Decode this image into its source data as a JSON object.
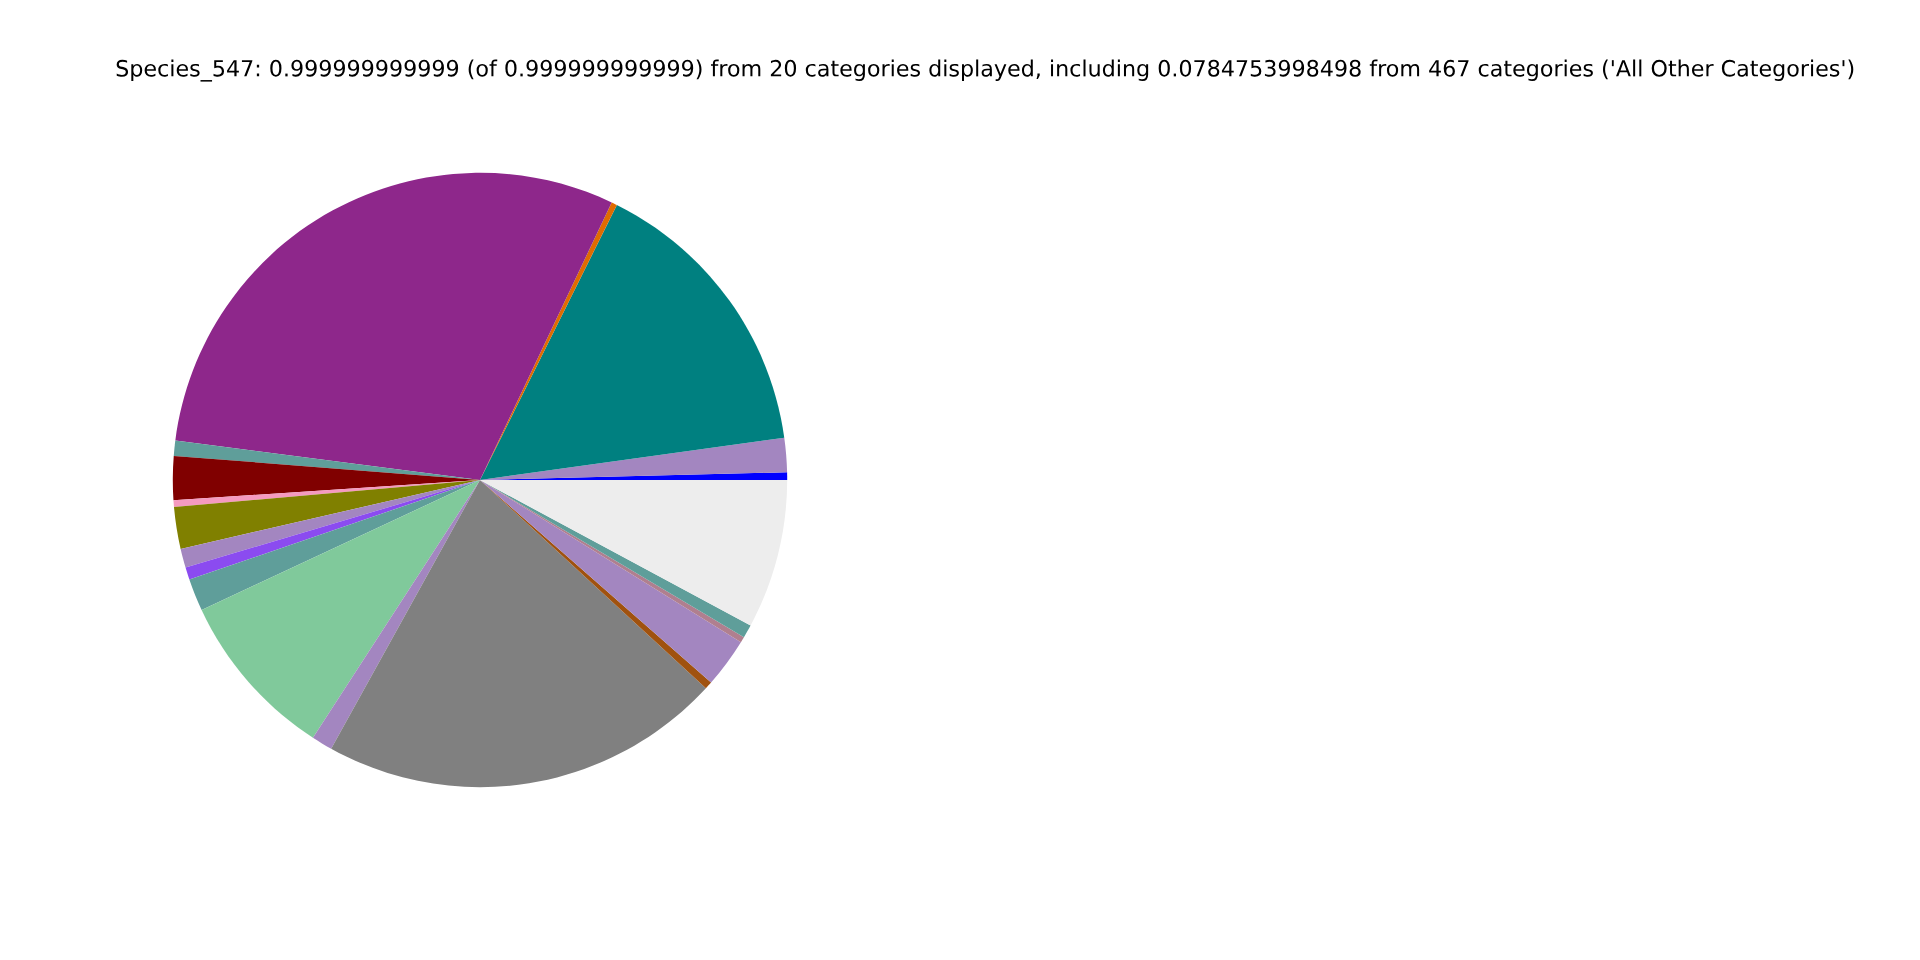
{
  "chart_data": {
    "type": "pie",
    "title": "Species_547: 0.999999999999 (of 0.999999999999) from 20 categories displayed, including 0.0784753998498 from 467 categories ('All Other Categories')",
    "categories": [
      null,
      null,
      null,
      null,
      null,
      null,
      null,
      null,
      null,
      null,
      null,
      null,
      null,
      null,
      null,
      null,
      null,
      null,
      null,
      null
    ],
    "values": [
      0.4,
      1.8,
      15.45,
      0.3,
      30.0,
      0.8,
      2.3,
      0.35,
      2.2,
      1.0,
      0.65,
      1.7,
      8.9,
      1.1,
      21.2,
      0.4,
      2.6,
      0.3,
      0.7,
      7.85
    ],
    "colors": [
      "#0000ff",
      "#a386c0",
      "#008080",
      "#e06b00",
      "#8e278b",
      "#5f9e9a",
      "#800000",
      "#f59ac0",
      "#808000",
      "#a386c0",
      "#8b4bf0",
      "#5f9e9a",
      "#80c99b",
      "#a386c0",
      "#808080",
      "#a0520f",
      "#a386c0",
      "#b07f8f",
      "#5f9e9a",
      "#ededed"
    ]
  }
}
